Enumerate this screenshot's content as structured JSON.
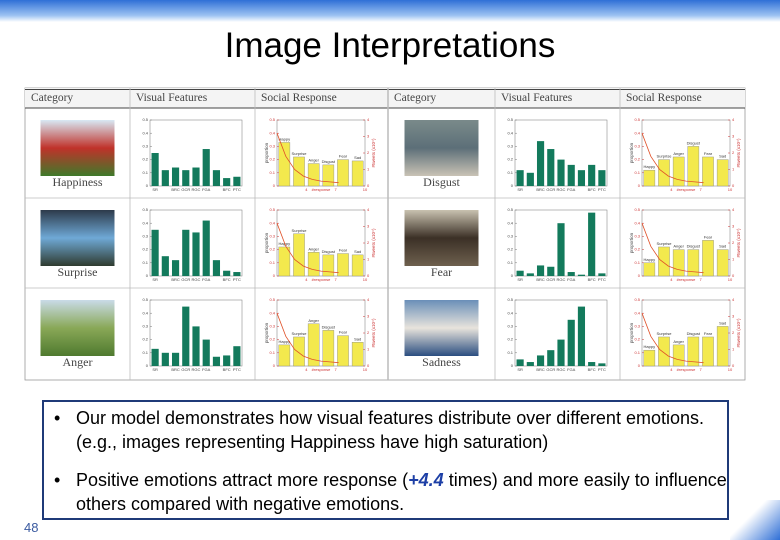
{
  "title": "Image Interpretations",
  "figure": {
    "headers": [
      "Category",
      "Visual Features",
      "Social Response",
      "Category",
      "Visual Features",
      "Social Response"
    ],
    "feature_labels": [
      "SR",
      null,
      "BRC",
      "GCR",
      "RGC",
      "FGA",
      null,
      "BFC",
      "PTC"
    ],
    "feature_ylim": [
      0,
      0.5
    ],
    "feature_yticks": [
      0,
      0.1,
      0.2,
      0.3,
      0.4,
      0.5
    ],
    "social_labels": [
      "Happy",
      "Surprise",
      "Anger",
      "Disgust",
      "Fear",
      "Sad"
    ],
    "social_ylim": [
      0,
      0.5
    ],
    "social_yticks": [
      0,
      0.1,
      0.2,
      0.3,
      0.4,
      0.5
    ],
    "social_y2lim": [
      0,
      4
    ],
    "social_y2ticks": [
      0,
      1,
      2,
      3,
      4
    ],
    "social_xticks": [
      4,
      7,
      10
    ],
    "social_xlabel": "#response",
    "social_ylabel": "proportion",
    "social_y2label": "#tweets (x10⁴)",
    "curve": [
      3.2,
      1.8,
      1.0,
      0.6,
      0.4,
      0.3,
      0.25,
      0.2
    ],
    "cells": [
      {
        "category": "Happiness",
        "features": [
          0.25,
          0.12,
          0.14,
          0.12,
          0.14,
          0.28,
          0.12,
          0.06,
          0.07
        ],
        "response": [
          0.33,
          0.22,
          0.17,
          0.16,
          0.2,
          0.19
        ]
      },
      {
        "category": "Surprise",
        "features": [
          0.35,
          0.15,
          0.12,
          0.35,
          0.33,
          0.42,
          0.12,
          0.04,
          0.03
        ],
        "response": [
          0.22,
          0.32,
          0.18,
          0.16,
          0.17,
          0.16
        ]
      },
      {
        "category": "Anger",
        "features": [
          0.13,
          0.1,
          0.1,
          0.45,
          0.3,
          0.2,
          0.07,
          0.08,
          0.15
        ],
        "response": [
          0.16,
          0.22,
          0.32,
          0.27,
          0.23,
          0.18
        ]
      },
      {
        "category": "Disgust",
        "features": [
          0.12,
          0.1,
          0.34,
          0.28,
          0.2,
          0.16,
          0.12,
          0.16,
          0.12
        ],
        "response": [
          0.12,
          0.2,
          0.22,
          0.3,
          0.22,
          0.2
        ]
      },
      {
        "category": "Fear",
        "features": [
          0.04,
          0.02,
          0.08,
          0.07,
          0.4,
          0.03,
          0.01,
          0.48,
          0.02
        ],
        "response": [
          0.1,
          0.22,
          0.2,
          0.2,
          0.27,
          0.2
        ]
      },
      {
        "category": "Sadness",
        "features": [
          0.05,
          0.03,
          0.08,
          0.12,
          0.2,
          0.35,
          0.45,
          0.03,
          0.02
        ],
        "response": [
          0.12,
          0.22,
          0.16,
          0.22,
          0.22,
          0.3
        ]
      }
    ]
  },
  "bullets": [
    {
      "parts": [
        "Our model demonstrates how visual features distribute over different emotions. (e.g., images representing Happiness have high saturation)"
      ]
    },
    {
      "parts": [
        "Positive emotions attract more response (",
        "+4.4",
        " times) and more easily to influence others compared with negative emotions."
      ]
    }
  ],
  "page_number": "48"
}
